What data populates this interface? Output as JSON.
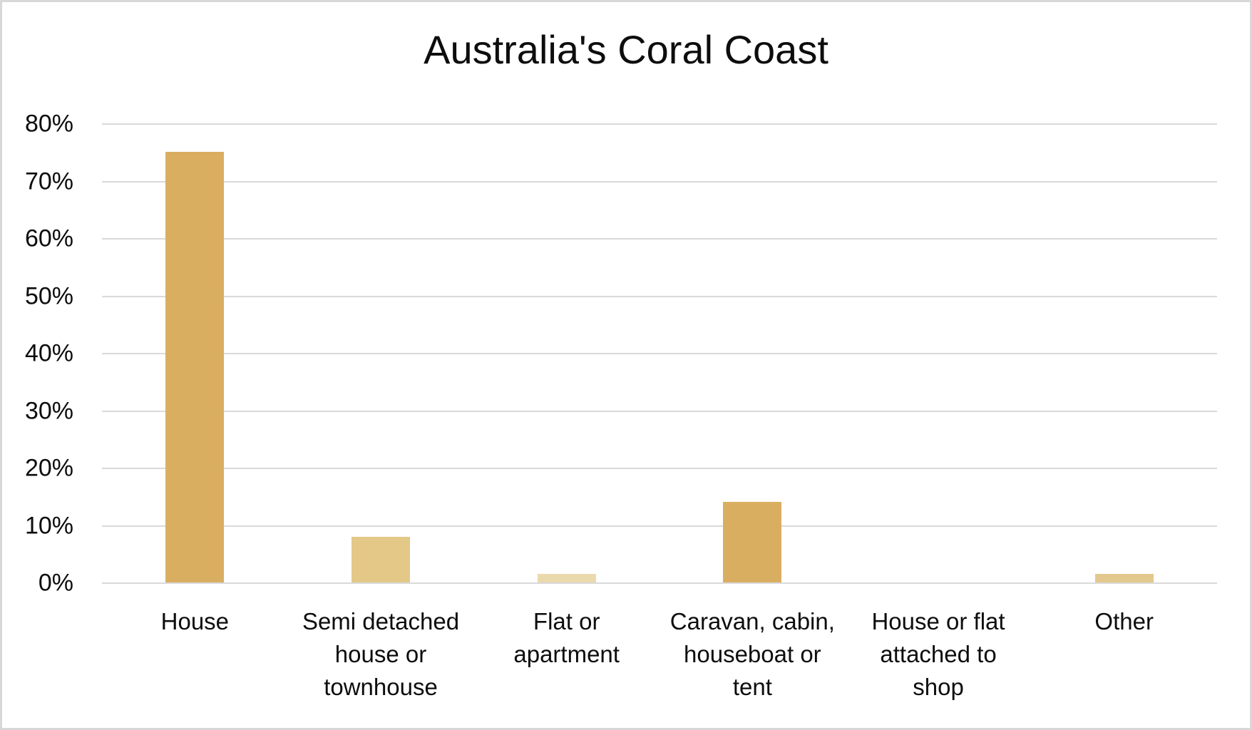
{
  "title": "Australia's Coral Coast",
  "chart_data": {
    "type": "bar",
    "title": "Australia's Coral Coast",
    "categories": [
      "House",
      "Semi detached house or townhouse",
      "Flat or apartment",
      "Caravan, cabin, houseboat or tent",
      "House or flat attached to shop",
      "Other"
    ],
    "category_lines": [
      [
        "House"
      ],
      [
        "Semi detached",
        "house or",
        "townhouse"
      ],
      [
        "Flat or",
        "apartment"
      ],
      [
        "Caravan, cabin,",
        "houseboat or",
        "tent"
      ],
      [
        "House or flat",
        "attached to",
        "shop"
      ],
      [
        "Other"
      ]
    ],
    "values": [
      75,
      8,
      1.5,
      14,
      0,
      1.5
    ],
    "unit": "%",
    "bar_colors": [
      "#DAAE61",
      "#E3C888",
      "#EBD9AE",
      "#DAAE61",
      "#EBD9AE",
      "#E3C98E"
    ],
    "xlabel": "",
    "ylabel": "",
    "ylim": [
      0,
      80
    ],
    "yticks": [
      "80%",
      "70%",
      "60%",
      "50%",
      "40%",
      "30%",
      "20%",
      "10%",
      "0%"
    ],
    "grid": true,
    "gridline_color": "#D9D9D9",
    "legend": false,
    "background_color": "#FFFFFF",
    "border_color": "#D8D8D8",
    "text_color": "#0D0D0D"
  }
}
